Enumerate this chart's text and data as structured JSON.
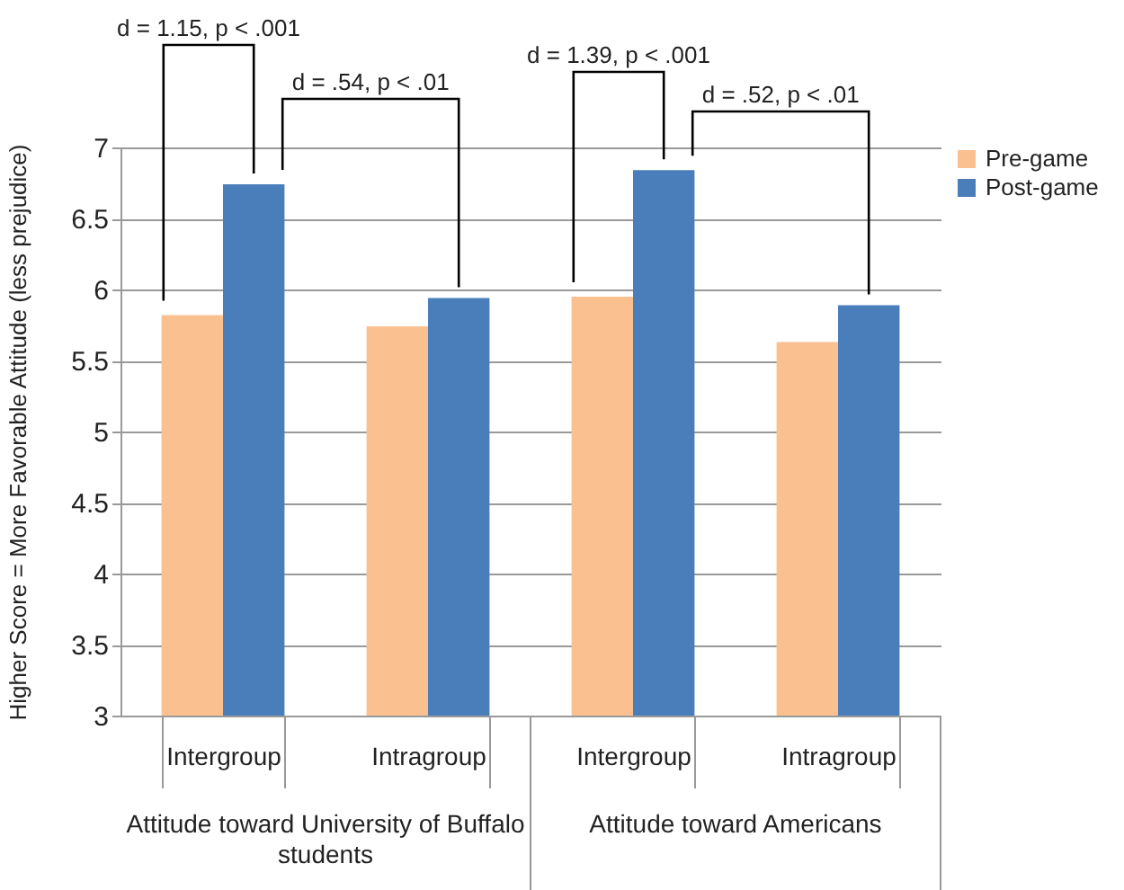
{
  "chart_data": {
    "type": "bar",
    "ylabel": "Higher Score = More Favorable Attitude (less prejudice)",
    "categories": [
      "Intergroup",
      "Intragroup",
      "Intergroup",
      "Intragroup"
    ],
    "series": [
      {
        "name": "Pre-game",
        "color": "#fac08f",
        "values": [
          5.82,
          5.74,
          5.95,
          5.63
        ]
      },
      {
        "name": "Post-game",
        "color": "#4a7ebb",
        "values": [
          6.74,
          5.94,
          6.84,
          5.89
        ]
      }
    ],
    "ylim": [
      3,
      7
    ],
    "yticks": [
      3,
      3.5,
      4,
      4.5,
      5,
      5.5,
      6,
      6.5,
      7
    ],
    "grid": "y",
    "legend": "right",
    "annotations": [
      "d = 1.15, p < .001",
      "d = .54, p < .01",
      "d = 1.39, p < .001",
      "d = .52, p < .01",
      "Attitude toward University of Buffalo students",
      "Attitude toward Americans"
    ]
  }
}
